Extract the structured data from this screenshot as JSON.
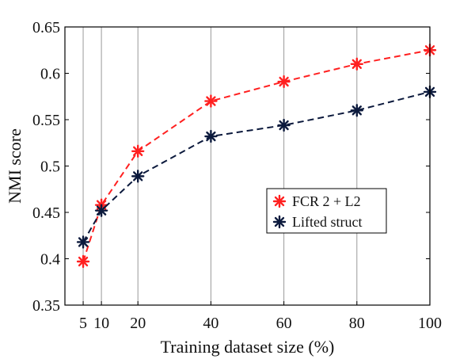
{
  "chart_data": {
    "type": "line",
    "xlabel": "Training dataset size (%)",
    "ylabel": "NMI score",
    "xlim": [
      0,
      100
    ],
    "ylim": [
      0.35,
      0.65
    ],
    "xticks": [
      5,
      10,
      20,
      40,
      60,
      80,
      100
    ],
    "xtick_labels": [
      "5",
      "10",
      "20",
      "40",
      "60",
      "80",
      "100"
    ],
    "yticks": [
      0.35,
      0.4,
      0.45,
      0.5,
      0.55,
      0.6,
      0.65
    ],
    "ytick_labels": [
      "0.35",
      "0.4",
      "0.45",
      "0.5",
      "0.55",
      "0.6",
      "0.65"
    ],
    "grid": "vertical lines at x ticks",
    "legend_position": "center-right",
    "x": [
      5,
      10,
      20,
      40,
      60,
      80,
      100
    ],
    "series": [
      {
        "name": "FCR 2 + L2",
        "color": "#ff2020",
        "values": [
          0.397,
          0.458,
          0.516,
          0.57,
          0.591,
          0.61,
          0.625
        ]
      },
      {
        "name": "Lifted struct",
        "color": "#0c1a3d",
        "values": [
          0.418,
          0.452,
          0.489,
          0.532,
          0.544,
          0.56,
          0.58
        ]
      }
    ]
  }
}
